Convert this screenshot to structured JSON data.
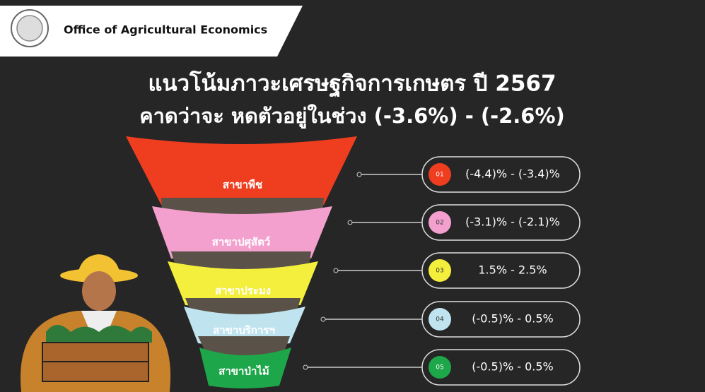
{
  "header": {
    "org": "Office of Agricultural Economics"
  },
  "title": {
    "line1": "แนวโน้มภาวะเศรษฐกิจการเกษตร ปี 2567",
    "line2": "คาดว่าจะ หดตัวอยู่ในช่วง (-3.6%) - (-2.6%)"
  },
  "items": [
    {
      "label": "สาขาพืช",
      "number": "01",
      "range": "(-4.4)% - (-3.4)%",
      "color": "#ee3d1f"
    },
    {
      "label": "สาขาปศุสัตว์",
      "number": "02",
      "range": "(-3.1)% - (-2.1)%",
      "color": "#f3a0cf"
    },
    {
      "label": "สาขาประมง",
      "number": "03",
      "range": "1.5% - 2.5%",
      "color": "#f4ef3c"
    },
    {
      "label": "สาขาบริการฯ",
      "number": "04",
      "range": "(-0.5)% - 0.5%",
      "color": "#bfe4ef"
    },
    {
      "label": "สาขาป่าไม้",
      "number": "05",
      "range": "(-0.5)% - 0.5%",
      "color": "#1ea64a"
    }
  ]
}
